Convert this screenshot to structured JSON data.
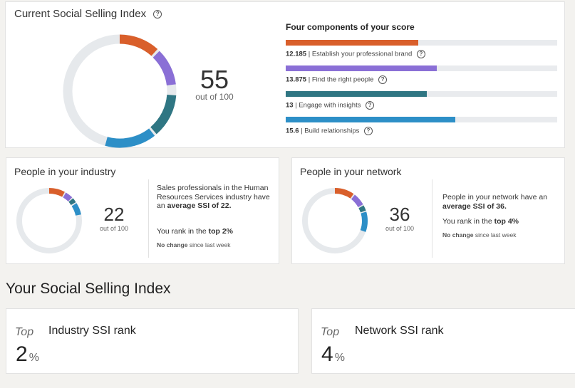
{
  "ssi": {
    "title": "Current Social Selling Index",
    "score": "55",
    "out_of": "out of 100",
    "components_title": "Four components of your score",
    "components": [
      {
        "value": "12.185",
        "label": "Establish your professional brand",
        "score": 12.185,
        "max": 25,
        "color": "#d95f2b"
      },
      {
        "value": "13.875",
        "label": "Find the right people",
        "score": 13.875,
        "max": 25,
        "color": "#8a6fd6"
      },
      {
        "value": "13",
        "label": "Engage with insights",
        "score": 13,
        "max": 25,
        "color": "#2f7683"
      },
      {
        "value": "15.6",
        "label": "Build relationships",
        "score": 15.6,
        "max": 25,
        "color": "#2d8fc7"
      }
    ]
  },
  "industry": {
    "title": "People in your industry",
    "score": "22",
    "out_of": "out of 100",
    "desc_pre": "Sales professionals in the Human Resources Services industry have an ",
    "desc_bold": "average SSI of 22.",
    "rank_pre": "You rank in the ",
    "rank_bold": "top 2%",
    "change_bold": "No change",
    "change_rest": " since last week"
  },
  "network": {
    "title": "People in your network",
    "score": "36",
    "out_of": "out of 100",
    "desc_pre": "People in your network have an ",
    "desc_bold": "average SSI of 36.",
    "rank_pre": "You rank in the ",
    "rank_bold": "top 4%",
    "change_bold": "No change",
    "change_rest": " since last week"
  },
  "section_title": "Your Social Selling Index",
  "ranks": [
    {
      "top": "Top",
      "label": "Industry SSI rank",
      "value": "2",
      "unit": "%"
    },
    {
      "top": "Top",
      "label": "Network SSI rank",
      "value": "4",
      "unit": "%"
    }
  ],
  "colors": {
    "orange": "#d95f2b",
    "purple": "#8a6fd6",
    "teal": "#2f7683",
    "blue": "#2d8fc7",
    "track": "#e6e9ec"
  }
}
